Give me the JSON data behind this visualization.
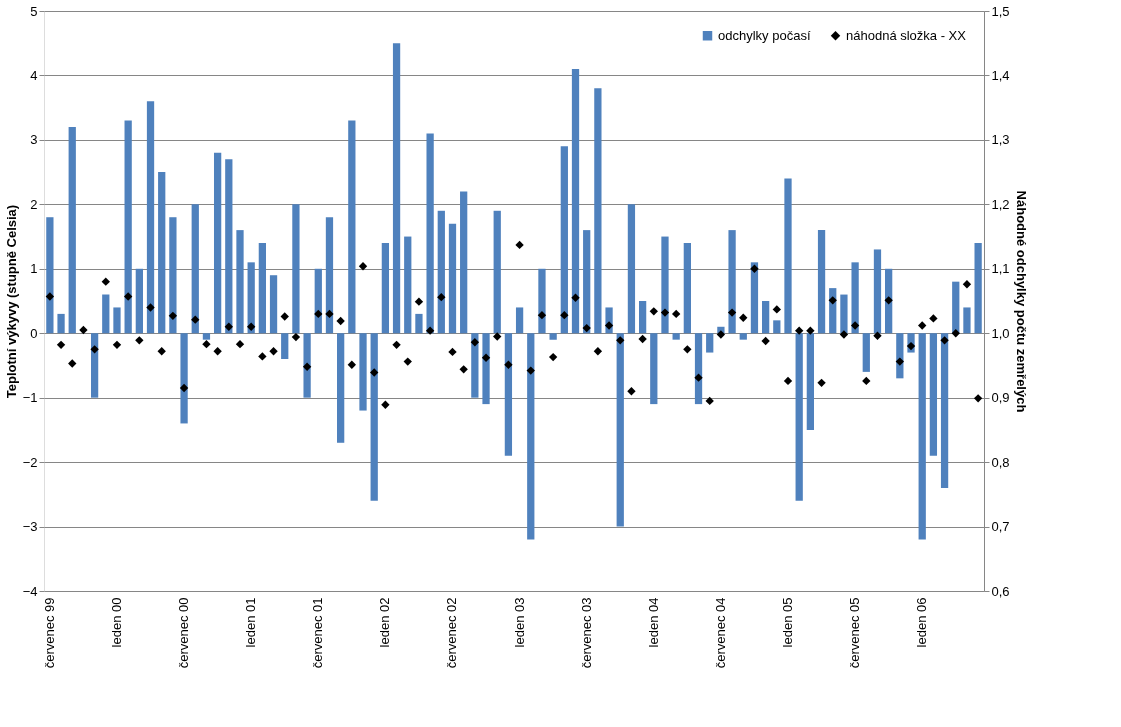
{
  "chart_data": {
    "type": "bar",
    "categories": [
      "červenec 99",
      null,
      null,
      null,
      null,
      null,
      "leden 00",
      null,
      null,
      null,
      null,
      null,
      "červenec 00",
      null,
      null,
      null,
      null,
      null,
      "leden 01",
      null,
      null,
      null,
      null,
      null,
      "červenec 01",
      null,
      null,
      null,
      null,
      null,
      "leden 02",
      null,
      null,
      null,
      null,
      null,
      "červenec 02",
      null,
      null,
      null,
      null,
      null,
      "leden 03",
      null,
      null,
      null,
      null,
      null,
      "červenec 03",
      null,
      null,
      null,
      null,
      null,
      "leden 04",
      null,
      null,
      null,
      null,
      null,
      "červenec 04",
      null,
      null,
      null,
      null,
      null,
      "leden 05",
      null,
      null,
      null,
      null,
      null,
      "červenec 05",
      null,
      null,
      null,
      null,
      null,
      "leden 06",
      null,
      null,
      null,
      null,
      null
    ],
    "series": [
      {
        "name": "odchylky počasí",
        "color": "#4f81bd",
        "values": [
          1.8,
          0.3,
          3.2,
          0,
          -1.0,
          0.6,
          0.4,
          3.3,
          1.0,
          3.6,
          2.5,
          1.8,
          -1.4,
          2.0,
          -0.1,
          2.8,
          2.7,
          1.6,
          1.1,
          1.4,
          0.9,
          -0.4,
          2.0,
          -1.0,
          1.0,
          1.8,
          -1.7,
          3.3,
          -1.2,
          -2.6,
          1.4,
          4.5,
          1.5,
          0.3,
          3.1,
          1.9,
          1.7,
          2.2,
          -1.0,
          -1.1,
          1.9,
          -1.9,
          0.4,
          -3.2,
          1.0,
          -0.1,
          2.9,
          4.1,
          1.6,
          3.8,
          0.4,
          -3.0,
          2.0,
          0.5,
          -1.1,
          1.5,
          -0.1,
          1.4,
          -1.1,
          -0.3,
          0.1,
          1.6,
          -0.1,
          1.1,
          0.5,
          0.2,
          2.4,
          -2.6,
          -1.5,
          1.6,
          0.7,
          0.6,
          1.1,
          -0.6,
          1.3,
          1.0,
          -0.7,
          -0.3,
          -3.2,
          -1.9,
          -2.4,
          0.8,
          0.4,
          1.4
        ]
      },
      {
        "name": "náhodná složka - XX",
        "type": "scatter",
        "axis": "y2",
        "marker": "diamond",
        "color": "#000000",
        "values": [
          1.057,
          0.982,
          0.953,
          1.005,
          0.975,
          1.08,
          0.982,
          1.057,
          0.989,
          1.04,
          0.972,
          1.027,
          0.915,
          1.021,
          0.983,
          0.972,
          1.01,
          0.983,
          1.01,
          0.964,
          0.972,
          1.026,
          0.994,
          0.948,
          1.03,
          1.03,
          1.019,
          0.951,
          1.104,
          0.939,
          0.889,
          0.982,
          0.956,
          1.049,
          1.004,
          1.056,
          0.971,
          0.944,
          0.986,
          0.962,
          0.995,
          0.951,
          1.137,
          0.942,
          1.028,
          0.963,
          1.028,
          1.055,
          1.008,
          0.972,
          1.012,
          0.989,
          0.91,
          0.991,
          1.034,
          1.032,
          1.03,
          0.975,
          0.931,
          0.895,
          0.998,
          1.032,
          1.024,
          1.1,
          0.988,
          1.037,
          0.926,
          1.004,
          1.004,
          0.923,
          1.051,
          0.998,
          1.012,
          0.926,
          0.996,
          1.051,
          0.956,
          0.98,
          1.012,
          1.023,
          0.989,
          1.0,
          1.076,
          0.899
        ]
      }
    ],
    "ylabel": "Teplotní výkyvy (stupně Celsia)",
    "y2label": "Náhodné odchylky počtu zemřelých",
    "ylim": [
      -4,
      5
    ],
    "yticks": [
      -4,
      -3,
      -2,
      -1,
      0,
      1,
      2,
      3,
      4,
      5
    ],
    "y2lim": [
      0.6,
      1.5
    ],
    "y2ticks": [
      {
        "value": 0.6,
        "label": "0,6"
      },
      {
        "value": 0.7,
        "label": "0,7"
      },
      {
        "value": 0.8,
        "label": "0,8"
      },
      {
        "value": 0.9,
        "label": "0,9"
      },
      {
        "value": 1.0,
        "label": "1,0"
      },
      {
        "value": 1.1,
        "label": "1,1"
      },
      {
        "value": 1.2,
        "label": "1,2"
      },
      {
        "value": 1.3,
        "label": "1,3"
      },
      {
        "value": 1.4,
        "label": "1,4"
      },
      {
        "value": 1.5,
        "label": "1,5"
      }
    ],
    "grid": "y",
    "legend": "top right"
  }
}
